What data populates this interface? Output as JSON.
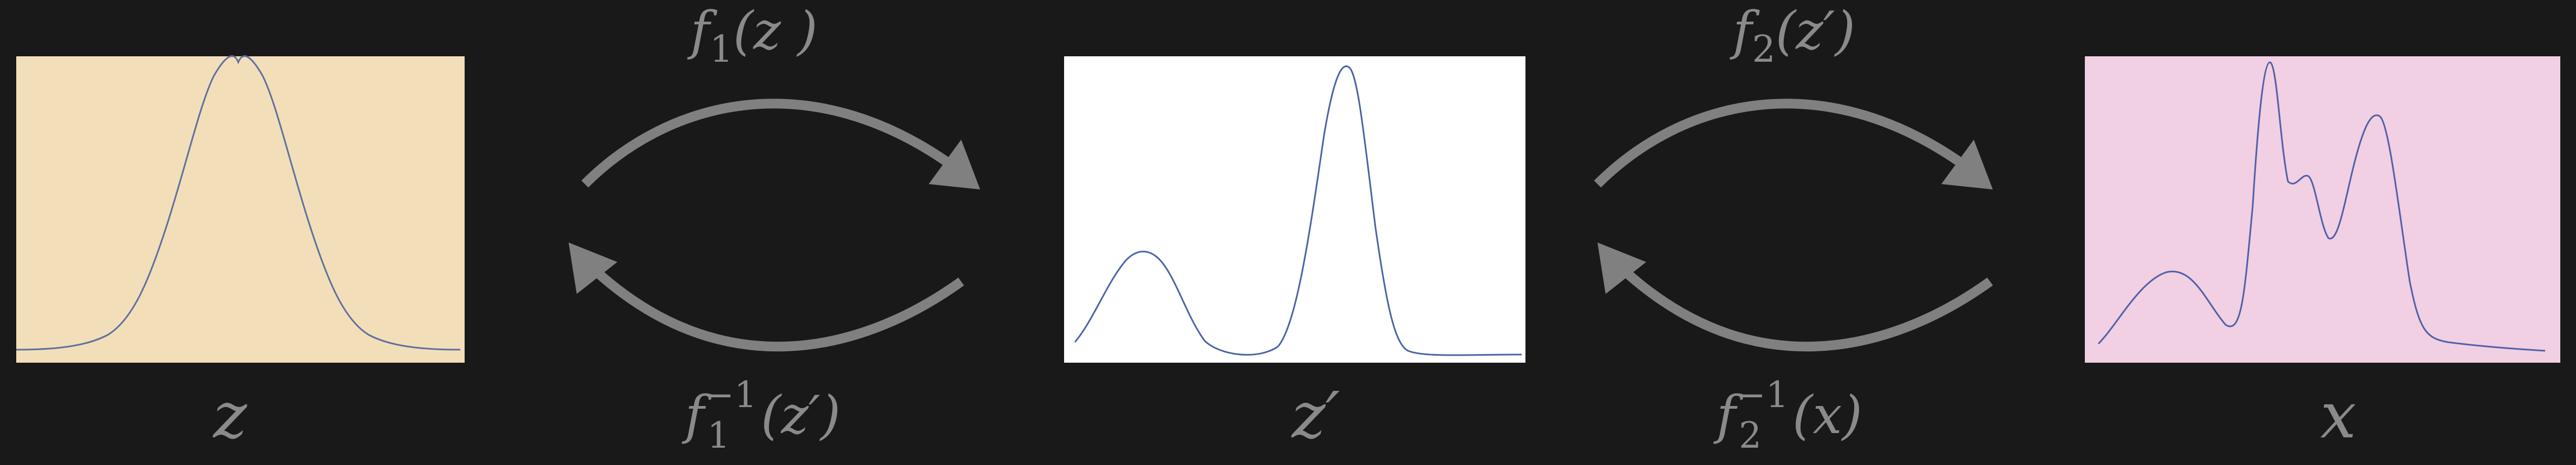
{
  "colors": {
    "background": "#191919",
    "arrow": "#808080",
    "label_text": "#8a8a8a",
    "curve": "#4a63a5",
    "panel_z_fill": "#f2dfba",
    "panel_zprime_fill": "#ffffff",
    "panel_x_fill": "#f0d0e2"
  },
  "panels": [
    {
      "id": "z",
      "caption": "z"
    },
    {
      "id": "z-prime",
      "caption": "z′"
    },
    {
      "id": "x",
      "caption": "x"
    }
  ],
  "transforms": [
    {
      "forward": {
        "fn": "f",
        "sub": "1",
        "sup": "",
        "arg": "(z )"
      },
      "inverse": {
        "fn": "f",
        "sub": "1",
        "sup": "−1",
        "arg": "(z′)"
      }
    },
    {
      "forward": {
        "fn": "f",
        "sub": "2",
        "sup": "",
        "arg": "(z′)"
      },
      "inverse": {
        "fn": "f",
        "sub": "2",
        "sup": "−1",
        "arg": "(x)"
      }
    }
  ],
  "icons": {
    "forward_arrow": "curved-arrow-right-icon",
    "inverse_arrow": "curved-arrow-left-icon"
  }
}
